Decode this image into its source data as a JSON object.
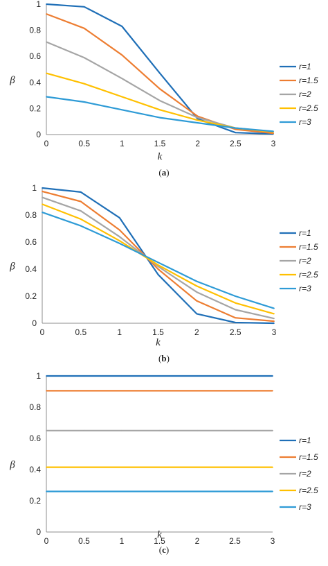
{
  "chart_data": [
    {
      "type": "line",
      "caption_open": "(",
      "caption_letter": "a",
      "caption_close": ")",
      "xlabel": "k",
      "ylabel": "β",
      "x": [
        0,
        0.5,
        1,
        1.5,
        2,
        2.5,
        3
      ],
      "xticks": [
        "0",
        "0.5",
        "1",
        "1.5",
        "2",
        "2.5",
        "3"
      ],
      "yticks": [
        "0",
        "0.2",
        "0.4",
        "0.6",
        "0.8",
        "1"
      ],
      "xlim": [
        0,
        3
      ],
      "ylim": [
        0,
        1
      ],
      "grid": false,
      "legend_position": "right",
      "series": [
        {
          "name": "r=1",
          "color": "#1f6fb7",
          "values": [
            1.0,
            0.98,
            0.83,
            0.47,
            0.12,
            0.015,
            0.005
          ]
        },
        {
          "name": "r=1.5",
          "color": "#ed7d31",
          "values": [
            0.925,
            0.815,
            0.61,
            0.35,
            0.14,
            0.04,
            0.01
          ]
        },
        {
          "name": "r=2",
          "color": "#a5a5a5",
          "values": [
            0.71,
            0.59,
            0.43,
            0.26,
            0.13,
            0.05,
            0.02
          ]
        },
        {
          "name": "r=2.5",
          "color": "#ffc000",
          "values": [
            0.47,
            0.39,
            0.29,
            0.19,
            0.11,
            0.05,
            0.02
          ]
        },
        {
          "name": "r=3",
          "color": "#2e9bd6",
          "values": [
            0.29,
            0.25,
            0.19,
            0.13,
            0.09,
            0.05,
            0.025
          ]
        }
      ]
    },
    {
      "type": "line",
      "caption_open": "(",
      "caption_letter": "b",
      "caption_close": ")",
      "xlabel": "k",
      "ylabel": "β",
      "x": [
        0,
        0.5,
        1,
        1.5,
        2,
        2.5,
        3
      ],
      "xticks": [
        "0",
        "0.5",
        "1",
        "1.5",
        "2",
        "2.5",
        "3"
      ],
      "yticks": [
        "0",
        "0.2",
        "0.4",
        "0.6",
        "0.8",
        "1"
      ],
      "xlim": [
        0,
        3
      ],
      "ylim": [
        0,
        1
      ],
      "grid": false,
      "legend_position": "right",
      "series": [
        {
          "name": "r=1",
          "color": "#1f6fb7",
          "values": [
            1.0,
            0.97,
            0.78,
            0.36,
            0.07,
            0.005,
            0.0
          ]
        },
        {
          "name": "r=1.5",
          "color": "#ed7d31",
          "values": [
            0.975,
            0.9,
            0.69,
            0.4,
            0.165,
            0.04,
            0.015
          ]
        },
        {
          "name": "r=2",
          "color": "#a5a5a5",
          "values": [
            0.93,
            0.83,
            0.64,
            0.42,
            0.23,
            0.1,
            0.035
          ]
        },
        {
          "name": "r=2.5",
          "color": "#ffc000",
          "values": [
            0.88,
            0.77,
            0.61,
            0.43,
            0.275,
            0.15,
            0.07
          ]
        },
        {
          "name": "r=3",
          "color": "#2e9bd6",
          "values": [
            0.82,
            0.72,
            0.59,
            0.45,
            0.31,
            0.2,
            0.11
          ]
        }
      ]
    },
    {
      "type": "line",
      "caption_open": "(",
      "caption_letter": "c",
      "caption_close": ")",
      "xlabel": "k",
      "ylabel": "β",
      "x": [
        0,
        0.5,
        1,
        1.5,
        2,
        2.5,
        3
      ],
      "xticks": [
        "0",
        "0.5",
        "1",
        "1.5",
        "2",
        "2.5",
        "3"
      ],
      "yticks": [
        "0",
        "0.2",
        "0.4",
        "0.6",
        "0.8",
        "1"
      ],
      "xlim": [
        0,
        3
      ],
      "ylim": [
        0,
        1
      ],
      "grid": false,
      "legend_position": "right",
      "series": [
        {
          "name": "r=1",
          "color": "#1f6fb7",
          "values": [
            1.0,
            1.0,
            1.0,
            1.0,
            1.0,
            1.0,
            1.0
          ]
        },
        {
          "name": "r=1.5",
          "color": "#ed7d31",
          "values": [
            0.905,
            0.905,
            0.905,
            0.905,
            0.905,
            0.905,
            0.905
          ]
        },
        {
          "name": "r=2",
          "color": "#a5a5a5",
          "values": [
            0.65,
            0.65,
            0.65,
            0.65,
            0.65,
            0.65,
            0.65
          ]
        },
        {
          "name": "r=2.5",
          "color": "#ffc000",
          "values": [
            0.415,
            0.415,
            0.415,
            0.415,
            0.415,
            0.415,
            0.415
          ]
        },
        {
          "name": "r=3",
          "color": "#2e9bd6",
          "values": [
            0.26,
            0.26,
            0.26,
            0.26,
            0.26,
            0.26,
            0.26
          ]
        }
      ]
    }
  ]
}
